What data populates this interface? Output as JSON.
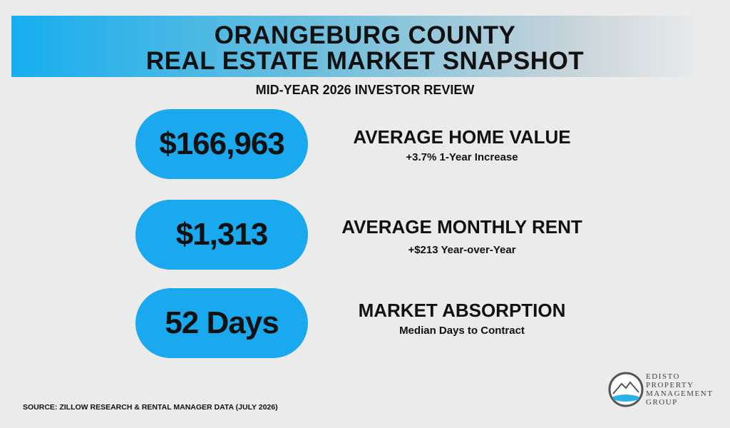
{
  "header": {
    "title": [
      "ORANGEBURG COUNTY",
      "REAL ESTATE MARKET SNAPSHOT"
    ],
    "subtitle": "MID-YEAR 2026 INVESTOR REVIEW"
  },
  "stats": [
    {
      "value": "$166,963",
      "label": "AVERAGE HOME VALUE",
      "detail": "+3.7% 1-Year Increase"
    },
    {
      "value": "$1,313",
      "label": "AVERAGE MONTHLY RENT",
      "detail": "+$213 Year-over-Year"
    },
    {
      "value": "52 Days",
      "label": "MARKET ABSORPTION",
      "detail": "Median Days to Contract"
    }
  ],
  "source": "SOURCE: ZILLOW RESEARCH & RENTAL MANAGER DATA (JULY 2026)",
  "logo": [
    "EDISTO",
    "PROPERTY",
    "MANAGEMENT",
    "GROUP"
  ]
}
